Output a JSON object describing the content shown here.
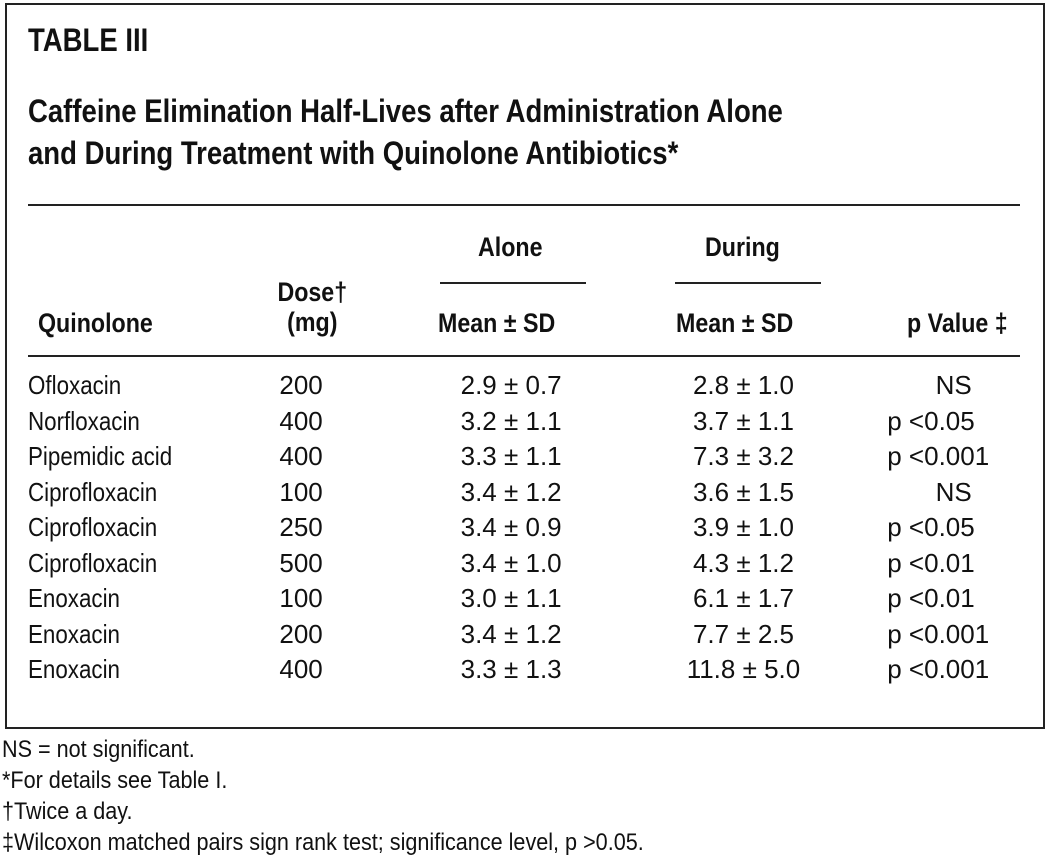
{
  "table": {
    "label": "TABLE III",
    "title_line1": "Caffeine Elimination Half-Lives after Administration Alone",
    "title_line2": "and During Treatment with Quinolone Antibiotics*",
    "headers": {
      "quinolone": "Quinolone",
      "dose_line1": "Dose†",
      "dose_line2": "(mg)",
      "alone": "Alone",
      "alone_sub": "Mean ± SD",
      "during": "During",
      "during_sub": "Mean ± SD",
      "p_value": "p Value ‡"
    },
    "rows": [
      {
        "quinolone": "Ofloxacin",
        "dose": "200",
        "alone": "2.9 ± 0.7",
        "during": "2.8 ± 1.0",
        "p": "NS"
      },
      {
        "quinolone": "Norfloxacin",
        "dose": "400",
        "alone": "3.2 ± 1.1",
        "during": "3.7 ± 1.1",
        "p": "p <0.05"
      },
      {
        "quinolone": "Pipemidic acid",
        "dose": "400",
        "alone": "3.3 ± 1.1",
        "during": "7.3 ± 3.2",
        "p": "p <0.001"
      },
      {
        "quinolone": "Ciprofloxacin",
        "dose": "100",
        "alone": "3.4 ± 1.2",
        "during": "3.6 ± 1.5",
        "p": "NS"
      },
      {
        "quinolone": "Ciprofloxacin",
        "dose": "250",
        "alone": "3.4 ± 0.9",
        "during": "3.9 ± 1.0",
        "p": "p <0.05"
      },
      {
        "quinolone": "Ciprofloxacin",
        "dose": "500",
        "alone": "3.4 ± 1.0",
        "during": "4.3 ± 1.2",
        "p": "p <0.01"
      },
      {
        "quinolone": "Enoxacin",
        "dose": "100",
        "alone": "3.0 ± 1.1",
        "during": "6.1 ± 1.7",
        "p": "p <0.01"
      },
      {
        "quinolone": "Enoxacin",
        "dose": "200",
        "alone": "3.4 ± 1.2",
        "during": "7.7 ± 2.5",
        "p": "p <0.001"
      },
      {
        "quinolone": "Enoxacin",
        "dose": "400",
        "alone": "3.3 ± 1.3",
        "during": "11.8 ± 5.0",
        "p": "p <0.001"
      }
    ]
  },
  "footnotes": [
    "NS = not significant.",
    "*For details see Table I.",
    "†Twice a day.",
    "‡Wilcoxon matched pairs sign rank test; significance level, p >0.05."
  ]
}
